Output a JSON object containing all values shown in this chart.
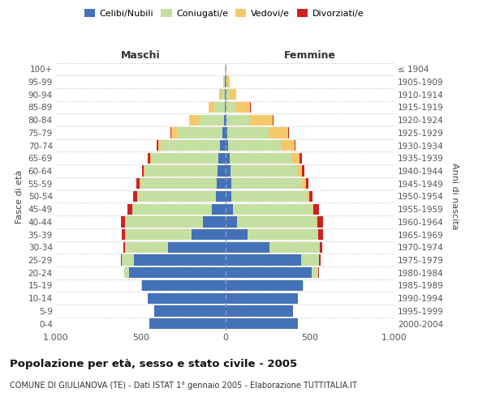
{
  "age_groups": [
    "0-4",
    "5-9",
    "10-14",
    "15-19",
    "20-24",
    "25-29",
    "30-34",
    "35-39",
    "40-44",
    "45-49",
    "50-54",
    "55-59",
    "60-64",
    "65-69",
    "70-74",
    "75-79",
    "80-84",
    "85-89",
    "90-94",
    "95-99",
    "100+"
  ],
  "birth_years": [
    "2000-2004",
    "1995-1999",
    "1990-1994",
    "1985-1989",
    "1980-1984",
    "1975-1979",
    "1970-1974",
    "1965-1969",
    "1960-1964",
    "1955-1959",
    "1950-1954",
    "1945-1949",
    "1940-1944",
    "1935-1939",
    "1930-1934",
    "1925-1929",
    "1920-1924",
    "1915-1919",
    "1910-1914",
    "1905-1909",
    "≤ 1904"
  ],
  "males": {
    "celibi": [
      450,
      420,
      460,
      490,
      570,
      540,
      340,
      200,
      130,
      80,
      55,
      50,
      45,
      40,
      30,
      15,
      8,
      4,
      2,
      1,
      0
    ],
    "coniugati": [
      0,
      0,
      0,
      5,
      25,
      70,
      250,
      390,
      460,
      470,
      460,
      450,
      430,
      400,
      350,
      270,
      150,
      60,
      20,
      6,
      2
    ],
    "vedovi": [
      0,
      0,
      0,
      0,
      0,
      0,
      0,
      0,
      0,
      0,
      5,
      5,
      5,
      5,
      18,
      35,
      55,
      35,
      15,
      4,
      2
    ],
    "divorziati": [
      0,
      0,
      0,
      0,
      2,
      5,
      12,
      22,
      28,
      28,
      22,
      18,
      14,
      14,
      9,
      4,
      2,
      1,
      0,
      0,
      0
    ]
  },
  "females": {
    "nubili": [
      430,
      400,
      430,
      460,
      510,
      450,
      260,
      130,
      70,
      45,
      35,
      35,
      30,
      25,
      18,
      12,
      6,
      3,
      2,
      1,
      0
    ],
    "coniugate": [
      0,
      0,
      0,
      5,
      40,
      105,
      295,
      415,
      470,
      470,
      445,
      420,
      395,
      365,
      315,
      245,
      135,
      55,
      18,
      5,
      2
    ],
    "vedove": [
      0,
      0,
      0,
      0,
      0,
      0,
      2,
      2,
      5,
      5,
      15,
      20,
      28,
      48,
      75,
      115,
      140,
      90,
      45,
      18,
      5
    ],
    "divorziate": [
      0,
      0,
      0,
      0,
      2,
      8,
      18,
      32,
      32,
      32,
      22,
      18,
      14,
      14,
      9,
      4,
      2,
      1,
      0,
      0,
      0
    ]
  },
  "colors": {
    "celibi": "#4472b8",
    "coniugati": "#c5dfa0",
    "vedovi": "#f5c96a",
    "divorziati": "#cc2222"
  },
  "xlim": 1000,
  "title": "Popolazione per età, sesso e stato civile - 2005",
  "subtitle": "COMUNE DI GIULIANOVA (TE) - Dati ISTAT 1° gennaio 2005 - Elaborazione TUTTITALIA.IT",
  "ylabel_left": "Fasce di età",
  "ylabel_right": "Anni di nascita",
  "xlabel_left": "Maschi",
  "xlabel_right": "Femmine",
  "legend_labels": [
    "Celibi/Nubili",
    "Coniugati/e",
    "Vedovi/e",
    "Divorziati/e"
  ],
  "background_color": "#ffffff",
  "grid_color": "#cccccc"
}
